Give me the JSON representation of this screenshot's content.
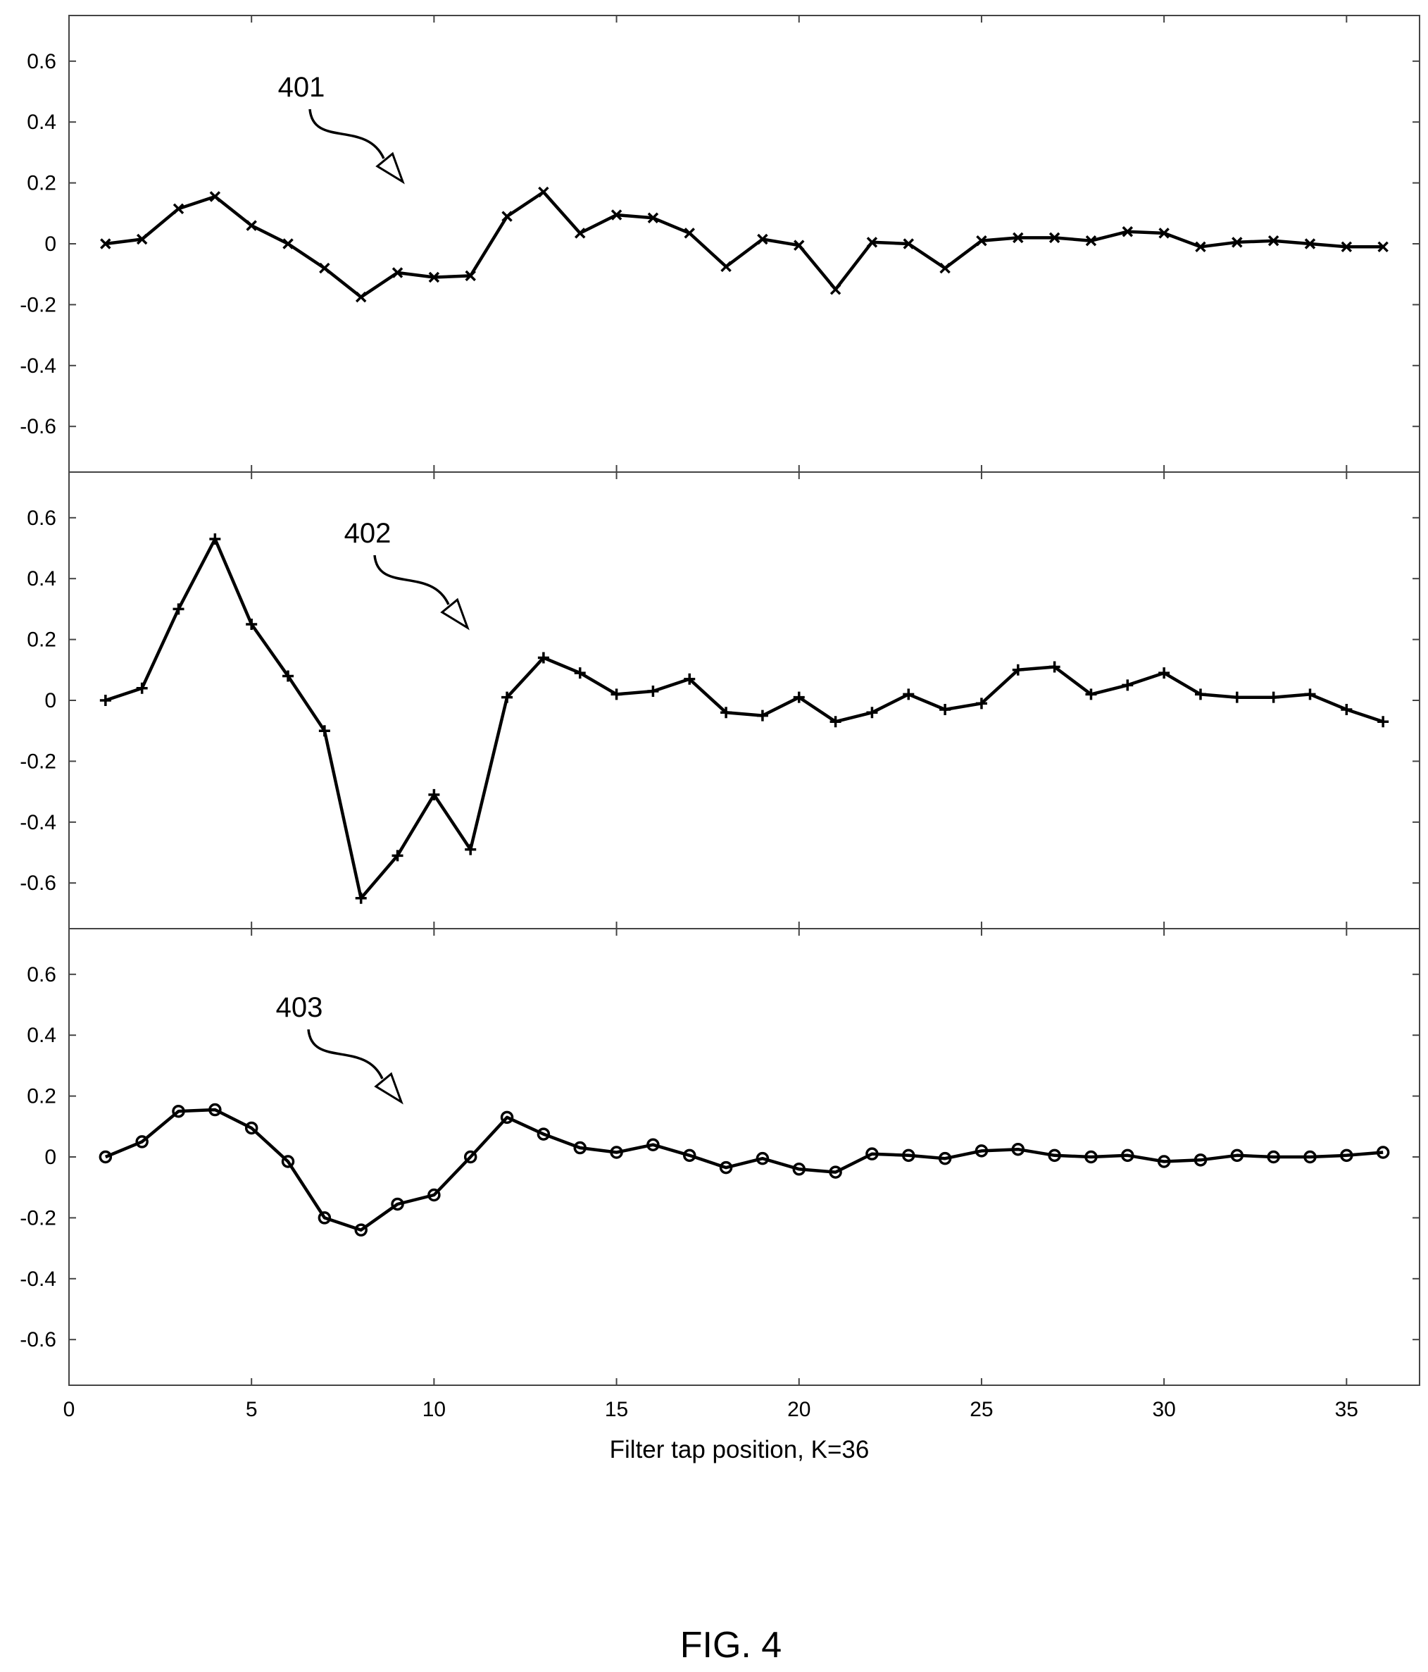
{
  "chart_data": {
    "type": "line",
    "xlabel": "Filter tap position, K=36",
    "xlim": [
      0,
      37
    ],
    "ylim": [
      -0.75,
      0.75
    ],
    "x_ticks": [
      0,
      5,
      10,
      15,
      20,
      25,
      30,
      35
    ],
    "y_ticks": [
      0.6,
      0.4,
      0.2,
      0,
      -0.2,
      -0.4,
      -0.6
    ],
    "x": [
      1,
      2,
      3,
      4,
      5,
      6,
      7,
      8,
      9,
      10,
      11,
      12,
      13,
      14,
      15,
      16,
      17,
      18,
      19,
      20,
      21,
      22,
      23,
      24,
      25,
      26,
      27,
      28,
      29,
      30,
      31,
      32,
      33,
      34,
      35,
      36
    ],
    "panels": [
      {
        "label": "401",
        "marker": "x",
        "values": [
          0.0,
          0.015,
          0.115,
          0.155,
          0.06,
          0.0,
          -0.08,
          -0.175,
          -0.095,
          -0.11,
          -0.105,
          0.09,
          0.17,
          0.035,
          0.095,
          0.085,
          0.035,
          -0.075,
          0.015,
          -0.005,
          -0.15,
          0.005,
          0.0,
          -0.08,
          0.01,
          0.02,
          0.02,
          0.01,
          0.04,
          0.035,
          -0.01,
          0.005,
          0.01,
          0.0,
          -0.01,
          -0.01
        ]
      },
      {
        "label": "402",
        "marker": "+",
        "values": [
          0.0,
          0.04,
          0.3,
          0.53,
          0.25,
          0.08,
          -0.1,
          -0.65,
          -0.51,
          -0.31,
          -0.49,
          0.01,
          0.14,
          0.09,
          0.02,
          0.03,
          0.07,
          -0.04,
          -0.05,
          0.01,
          -0.07,
          -0.04,
          0.02,
          -0.03,
          -0.01,
          0.1,
          0.11,
          0.02,
          0.05,
          0.09,
          0.02,
          0.01,
          0.01,
          0.02,
          -0.03,
          -0.07
        ]
      },
      {
        "label": "403",
        "marker": "o",
        "values": [
          0.0,
          0.05,
          0.15,
          0.155,
          0.095,
          -0.015,
          -0.2,
          -0.24,
          -0.155,
          -0.125,
          0.0,
          0.13,
          0.075,
          0.03,
          0.015,
          0.04,
          0.005,
          -0.035,
          -0.005,
          -0.04,
          -0.05,
          0.01,
          0.005,
          -0.005,
          0.02,
          0.025,
          0.005,
          0.0,
          0.005,
          -0.015,
          -0.01,
          0.005,
          0.0,
          0.0,
          0.005,
          0.015
        ]
      }
    ]
  },
  "caption": "FIG. 4"
}
